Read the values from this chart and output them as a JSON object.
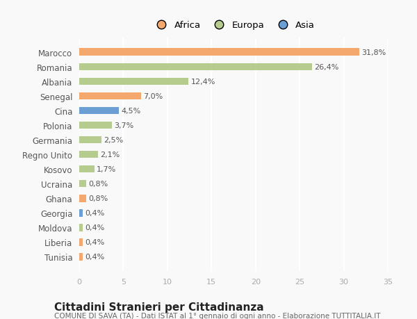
{
  "categories": [
    "Tunisia",
    "Liberia",
    "Moldova",
    "Georgia",
    "Ghana",
    "Ucraina",
    "Kosovo",
    "Regno Unito",
    "Germania",
    "Polonia",
    "Cina",
    "Senegal",
    "Albania",
    "Romania",
    "Marocco"
  ],
  "values": [
    0.4,
    0.4,
    0.4,
    0.4,
    0.8,
    0.8,
    1.7,
    2.1,
    2.5,
    3.7,
    4.5,
    7.0,
    12.4,
    26.4,
    31.8
  ],
  "colors": [
    "#f5a86e",
    "#f5a86e",
    "#b5cc8e",
    "#6b9fd4",
    "#f5a86e",
    "#b5cc8e",
    "#b5cc8e",
    "#b5cc8e",
    "#b5cc8e",
    "#b5cc8e",
    "#6b9fd4",
    "#f5a86e",
    "#b5cc8e",
    "#b5cc8e",
    "#f5a86e"
  ],
  "labels": [
    "0,4%",
    "0,4%",
    "0,4%",
    "0,4%",
    "0,8%",
    "0,8%",
    "1,7%",
    "2,1%",
    "2,5%",
    "3,7%",
    "4,5%",
    "7,0%",
    "12,4%",
    "26,4%",
    "31,8%"
  ],
  "legend": [
    {
      "label": "Africa",
      "color": "#f5a86e"
    },
    {
      "label": "Europa",
      "color": "#b5cc8e"
    },
    {
      "label": "Asia",
      "color": "#6b9fd4"
    }
  ],
  "xlim": [
    0,
    35
  ],
  "xticks": [
    0,
    5,
    10,
    15,
    20,
    25,
    30,
    35
  ],
  "title": "Cittadini Stranieri per Cittadinanza",
  "subtitle": "COMUNE DI SAVA (TA) - Dati ISTAT al 1° gennaio di ogni anno - Elaborazione TUTTITALIA.IT",
  "title_fontsize": 11,
  "subtitle_fontsize": 7.5,
  "bg_color": "#f9f9f9",
  "bar_label_fontsize": 8,
  "bar_height": 0.5,
  "ytick_fontsize": 8.5,
  "xtick_fontsize": 8
}
